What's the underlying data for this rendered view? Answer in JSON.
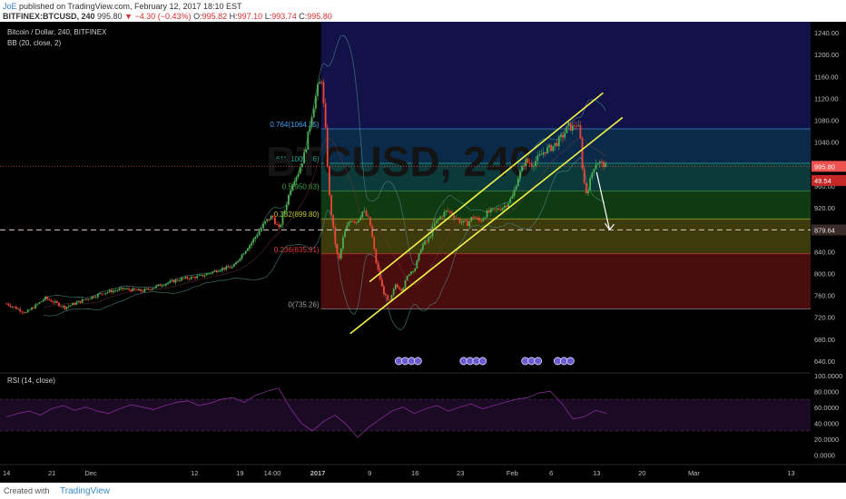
{
  "header": {
    "author": "JoE",
    "published": "published on TradingView.com, February 12, 2017 18:10 EST",
    "symbol": "BITFINEX:BTCUSD, 240",
    "last": "995.80",
    "change": "−4.30 (−0.43%)",
    "open_label": "O:",
    "open": "995.82",
    "high_label": "H:",
    "high": "997.10",
    "low_label": "L:",
    "low": "993.74",
    "close_label": "C:",
    "close": "995.80"
  },
  "legend": {
    "title": "Bitcoin / Dollar, 240, BITFINEX",
    "bb": "BB (20, close, 2)",
    "rsi": "RSI (14, close)",
    "watermark": "BTCUSD, 240"
  },
  "footer": {
    "created": "Created with",
    "brand": "TradingView"
  },
  "colors": {
    "background": "#000000",
    "up": "#4caf50",
    "down": "#f44336",
    "channel": "#f5f54a",
    "rsi": "#7b2a8a",
    "price_tag": "#ef5350"
  },
  "chart_data": {
    "type": "candlestick",
    "price_axis": {
      "min": 620,
      "max": 1260,
      "ticks": [
        640,
        680,
        720,
        760,
        800,
        840,
        880,
        920,
        960,
        1000,
        1040,
        1080,
        1120,
        1160,
        1200,
        1240
      ]
    },
    "price_tick_labels": [
      "640.00",
      "680.00",
      "720.00",
      "760.00",
      "800.00",
      "840.00",
      "880.00",
      "920.00",
      "960.00",
      "1000.00",
      "1040.00",
      "1080.00",
      "1120.00",
      "1160.00",
      "1200.00",
      "1240.00"
    ],
    "rsi_axis": {
      "min": -10,
      "max": 102,
      "ticks": [
        0,
        20,
        40,
        60,
        80,
        100
      ]
    },
    "rsi_tick_labels": [
      "0.0000",
      "20.0000",
      "40.0000",
      "60.0000",
      "80.0000",
      "100.0000"
    ],
    "time_labels": [
      "14",
      "21",
      "Dec",
      "12",
      "19",
      "14:00",
      "2017",
      "9",
      "16",
      "23",
      "Feb",
      "6",
      "13",
      "20",
      "Mar",
      "13"
    ],
    "time_label_positions": [
      0,
      7,
      13,
      29,
      36,
      41,
      48,
      56,
      63,
      70,
      78,
      84,
      91,
      98,
      106,
      121
    ],
    "price_path": [
      {
        "t": 0,
        "p": 745
      },
      {
        "t": 3,
        "p": 728
      },
      {
        "t": 6,
        "p": 755
      },
      {
        "t": 9,
        "p": 738
      },
      {
        "t": 12,
        "p": 752
      },
      {
        "t": 15,
        "p": 765
      },
      {
        "t": 18,
        "p": 772
      },
      {
        "t": 21,
        "p": 768
      },
      {
        "t": 24,
        "p": 780
      },
      {
        "t": 27,
        "p": 790
      },
      {
        "t": 30,
        "p": 795
      },
      {
        "t": 33,
        "p": 808
      },
      {
        "t": 35,
        "p": 812
      },
      {
        "t": 36,
        "p": 830
      },
      {
        "t": 38,
        "p": 860
      },
      {
        "t": 40,
        "p": 895
      },
      {
        "t": 41,
        "p": 905
      },
      {
        "t": 42,
        "p": 880
      },
      {
        "t": 43,
        "p": 920
      },
      {
        "t": 44,
        "p": 965
      },
      {
        "t": 45,
        "p": 985
      },
      {
        "t": 46,
        "p": 1020
      },
      {
        "t": 47,
        "p": 1085
      },
      {
        "t": 48,
        "p": 1140
      },
      {
        "t": 48.6,
        "p": 1155
      },
      {
        "t": 49.2,
        "p": 1060
      },
      {
        "t": 49.8,
        "p": 940
      },
      {
        "t": 50.5,
        "p": 870
      },
      {
        "t": 51.2,
        "p": 820
      },
      {
        "t": 52,
        "p": 870
      },
      {
        "t": 53,
        "p": 900
      },
      {
        "t": 54,
        "p": 895
      },
      {
        "t": 55,
        "p": 915
      },
      {
        "t": 56,
        "p": 895
      },
      {
        "t": 57,
        "p": 820
      },
      {
        "t": 58,
        "p": 770
      },
      {
        "t": 59,
        "p": 745
      },
      {
        "t": 60,
        "p": 780
      },
      {
        "t": 61,
        "p": 770
      },
      {
        "t": 62,
        "p": 800
      },
      {
        "t": 63,
        "p": 810
      },
      {
        "t": 64,
        "p": 850
      },
      {
        "t": 65,
        "p": 860
      },
      {
        "t": 66,
        "p": 890
      },
      {
        "t": 67,
        "p": 905
      },
      {
        "t": 68,
        "p": 915
      },
      {
        "t": 69,
        "p": 905
      },
      {
        "t": 70,
        "p": 895
      },
      {
        "t": 71,
        "p": 890
      },
      {
        "t": 72,
        "p": 905
      },
      {
        "t": 73,
        "p": 895
      },
      {
        "t": 74,
        "p": 910
      },
      {
        "t": 75,
        "p": 915
      },
      {
        "t": 76,
        "p": 918
      },
      {
        "t": 77,
        "p": 925
      },
      {
        "t": 78,
        "p": 940
      },
      {
        "t": 79,
        "p": 980
      },
      {
        "t": 80,
        "p": 1005
      },
      {
        "t": 81,
        "p": 1000
      },
      {
        "t": 82,
        "p": 1010
      },
      {
        "t": 83,
        "p": 1025
      },
      {
        "t": 84,
        "p": 1030
      },
      {
        "t": 85,
        "p": 1040
      },
      {
        "t": 86,
        "p": 1055
      },
      {
        "t": 86.6,
        "p": 1070
      },
      {
        "t": 87.2,
        "p": 1065
      },
      {
        "t": 87.8,
        "p": 1075
      },
      {
        "t": 88.4,
        "p": 1060
      },
      {
        "t": 88.8,
        "p": 995
      },
      {
        "t": 89.3,
        "p": 945
      },
      {
        "t": 89.8,
        "p": 960
      },
      {
        "t": 90.4,
        "p": 990
      },
      {
        "t": 91,
        "p": 1005
      },
      {
        "t": 91.8,
        "p": 1000
      },
      {
        "t": 92.6,
        "p": 995.8
      }
    ],
    "fibonacci": [
      {
        "level": "0",
        "price": 735.26,
        "label": "0(735.26)",
        "color": "#9e9e9e"
      },
      {
        "level": "0.236",
        "price": 835.91,
        "label": "0.236(835.91)",
        "color": "#e53935"
      },
      {
        "level": "0.382",
        "price": 899.8,
        "label": "0.382(899.80)",
        "color": "#c0ca33"
      },
      {
        "level": "0.5",
        "price": 950.63,
        "label": "0.5(950.63)",
        "color": "#43a047"
      },
      {
        "level": "0.618",
        "price": 1001.46,
        "label": "0.618(1001.46)",
        "color": "#26a69a"
      },
      {
        "level": "0.764",
        "price": 1064.35,
        "label": "0.764(1064.35)",
        "color": "#42a5f5"
      }
    ],
    "channel_lines": [
      {
        "from": {
          "t": 56,
          "p": 785
        },
        "to": {
          "t": 92,
          "p": 1130
        }
      },
      {
        "from": {
          "t": 53,
          "p": 690
        },
        "to": {
          "t": 95,
          "p": 1085
        }
      }
    ],
    "forecast_arrow": {
      "from": {
        "t": 91,
        "p": 985
      },
      "to": {
        "t": 93,
        "p": 880
      }
    },
    "horizontal_level": {
      "price": 879.64,
      "label": "879.64"
    },
    "price_tags": [
      {
        "label": "995.80",
        "price": 995.8
      },
      {
        "label": "49.54",
        "price": 970
      }
    ],
    "rsi_values": [
      48,
      52,
      55,
      50,
      58,
      62,
      56,
      60,
      55,
      52,
      58,
      63,
      60,
      57,
      62,
      66,
      68,
      62,
      65,
      70,
      72,
      66,
      75,
      80,
      84,
      60,
      40,
      30,
      42,
      50,
      38,
      22,
      35,
      45,
      55,
      60,
      52,
      58,
      62,
      55,
      60,
      64,
      58,
      62,
      66,
      70,
      72,
      78,
      80,
      65,
      45,
      48,
      56,
      52
    ]
  }
}
